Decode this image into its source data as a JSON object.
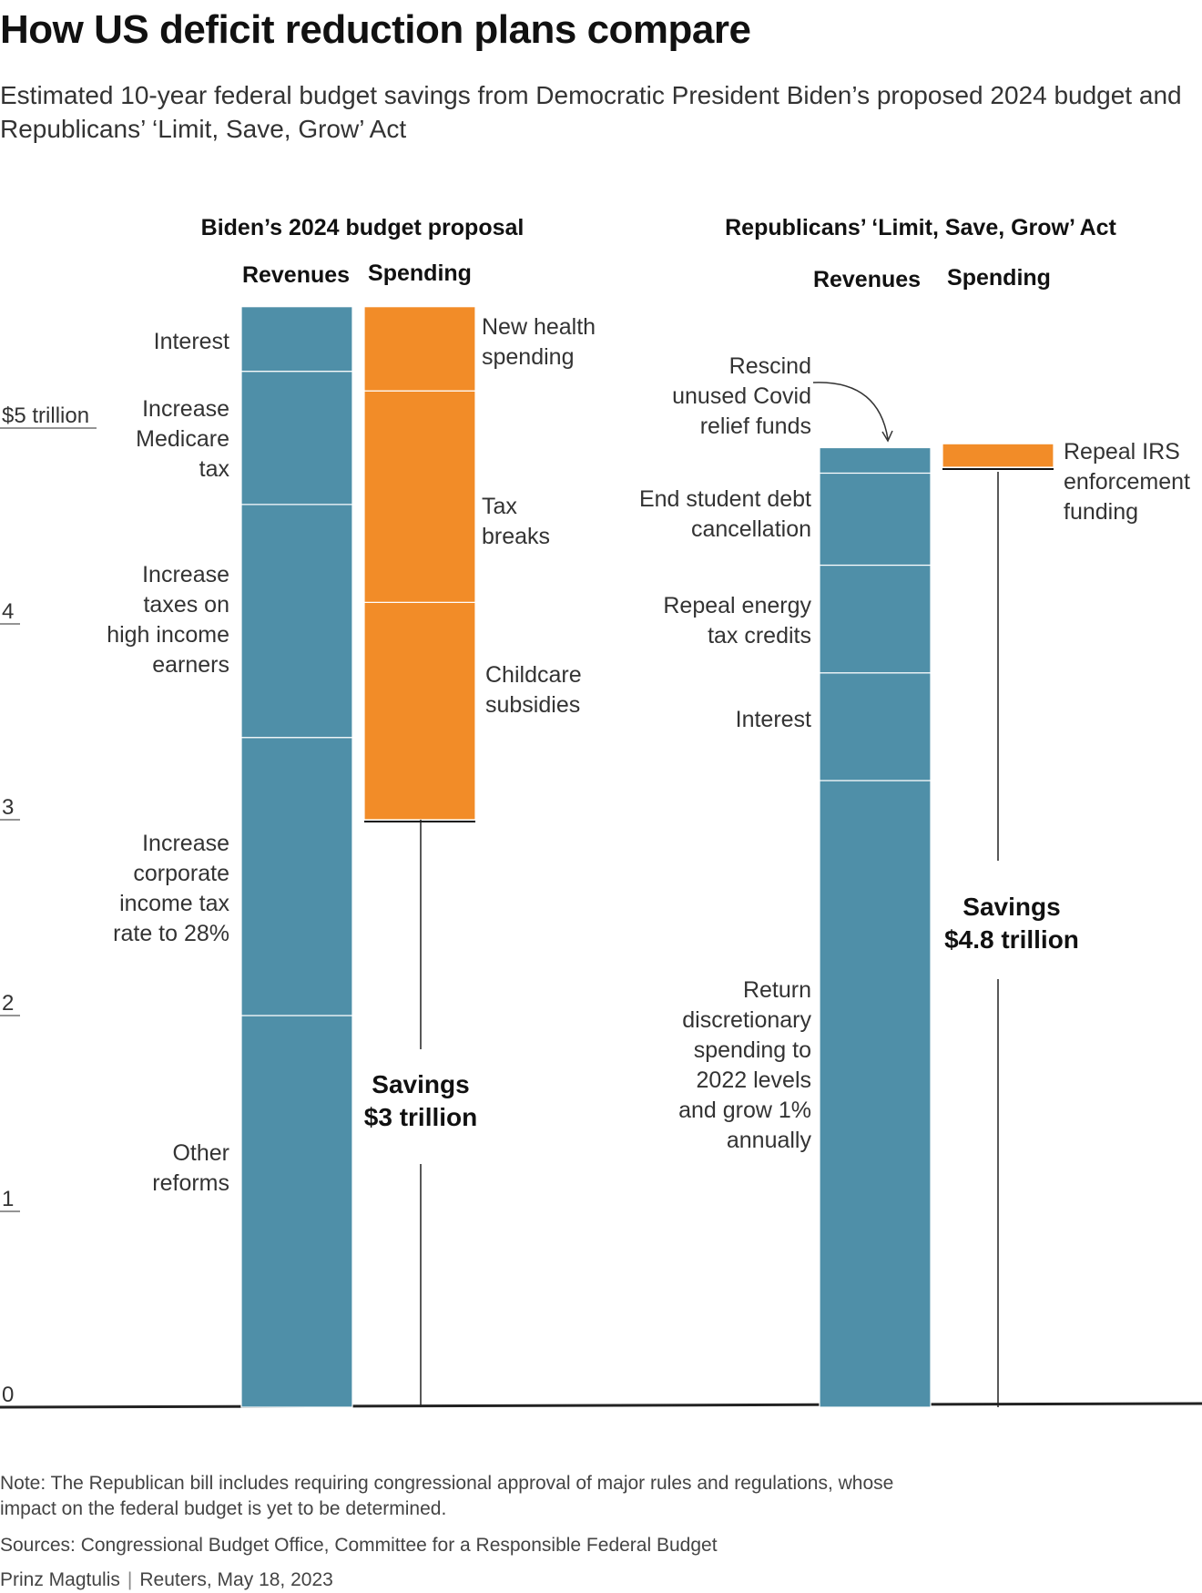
{
  "title": "How US deficit reduction plans compare",
  "subtitle": "Estimated 10-year federal budget savings from Democratic President Biden’s proposed 2024 budget and Republicans’ ‘Limit, Save, Grow’ Act",
  "colors": {
    "revenues": "#4f8fa8",
    "spending": "#f28c28",
    "axis": "#222222",
    "text": "#333333"
  },
  "chart_data": {
    "type": "bar",
    "stacked": true,
    "units": "trillion dollars",
    "y_axis": {
      "ylim": [
        0,
        5.6
      ],
      "ticks": [
        0,
        1,
        2,
        3,
        4,
        5
      ],
      "tick_labels": [
        "0",
        "1",
        "2",
        "3",
        "4",
        "$5 trillion"
      ]
    },
    "panels": [
      {
        "title": "Biden’s 2024 budget proposal",
        "savings_label": [
          "Savings",
          "$3 trillion"
        ],
        "columns": [
          {
            "name": "Revenues",
            "segments": [
              {
                "label": "Other reforms",
                "from": 0,
                "to": 2.0
              },
              {
                "label": "Increase corporate income tax rate to 28%",
                "from": 2.0,
                "to": 3.42
              },
              {
                "label": "Increase taxes on high income earners",
                "from": 3.42,
                "to": 4.61
              },
              {
                "label": "Increase Medicare tax",
                "from": 4.61,
                "to": 5.29
              },
              {
                "label": "Interest",
                "from": 5.29,
                "to": 5.62
              }
            ]
          },
          {
            "name": "Spending",
            "segments": [
              {
                "label": "Childcare subsidies",
                "from": 3.0,
                "to": 4.11
              },
              {
                "label": "Tax breaks",
                "from": 4.11,
                "to": 5.19
              },
              {
                "label": "New health spending",
                "from": 5.19,
                "to": 5.62
              }
            ]
          }
        ],
        "segment_labels": [
          [
            "Interest"
          ],
          [
            "Increase",
            "Medicare",
            "tax"
          ],
          [
            "Increase",
            "taxes on",
            "high income",
            "earners"
          ],
          [
            "Increase",
            "corporate",
            "income tax",
            "rate to 28%"
          ],
          [
            "Other",
            "reforms"
          ],
          [
            "New health",
            "spending"
          ],
          [
            "Tax",
            "breaks"
          ],
          [
            "Childcare",
            "subsidies"
          ]
        ]
      },
      {
        "title": "Republicans’ ‘Limit, Save, Grow’ Act",
        "savings_label": [
          "Savings",
          "$4.8 trillion"
        ],
        "columns": [
          {
            "name": "Revenues",
            "segments": [
              {
                "label": "Return discretionary spending to 2022 levels and grow 1% annually",
                "from": 0,
                "to": 3.2
              },
              {
                "label": "Interest",
                "from": 3.2,
                "to": 3.75
              },
              {
                "label": "Repeal energy tax credits",
                "from": 3.75,
                "to": 4.3
              },
              {
                "label": "End student debt cancellation",
                "from": 4.3,
                "to": 4.77
              },
              {
                "label": "Rescind unused Covid relief funds",
                "from": 4.77,
                "to": 4.9
              }
            ]
          },
          {
            "name": "Spending",
            "segments": [
              {
                "label": "Repeal IRS enforcement funding",
                "from": 4.8,
                "to": 4.92
              }
            ]
          }
        ],
        "segment_labels": [
          [
            "Rescind",
            "unused Covid",
            "relief funds"
          ],
          [
            "End student debt",
            "cancellation"
          ],
          [
            "Repeal energy",
            "tax credits"
          ],
          [
            "Interest"
          ],
          [
            "Return",
            "discretionary",
            "spending to",
            "2022 levels",
            "and grow 1%",
            "annually"
          ],
          [
            "Repeal IRS",
            "enforcement",
            "funding"
          ]
        ]
      }
    ]
  },
  "footer": {
    "note": "Note: The Republican bill includes requiring congressional approval of major rules and regulations, whose impact on the federal budget is yet to be determined.",
    "sources": "Sources: Congressional Budget Office, Committee for a Responsible Federal Budget",
    "author": "Prinz Magtulis",
    "publisher": "Reuters, May 18, 2023"
  }
}
